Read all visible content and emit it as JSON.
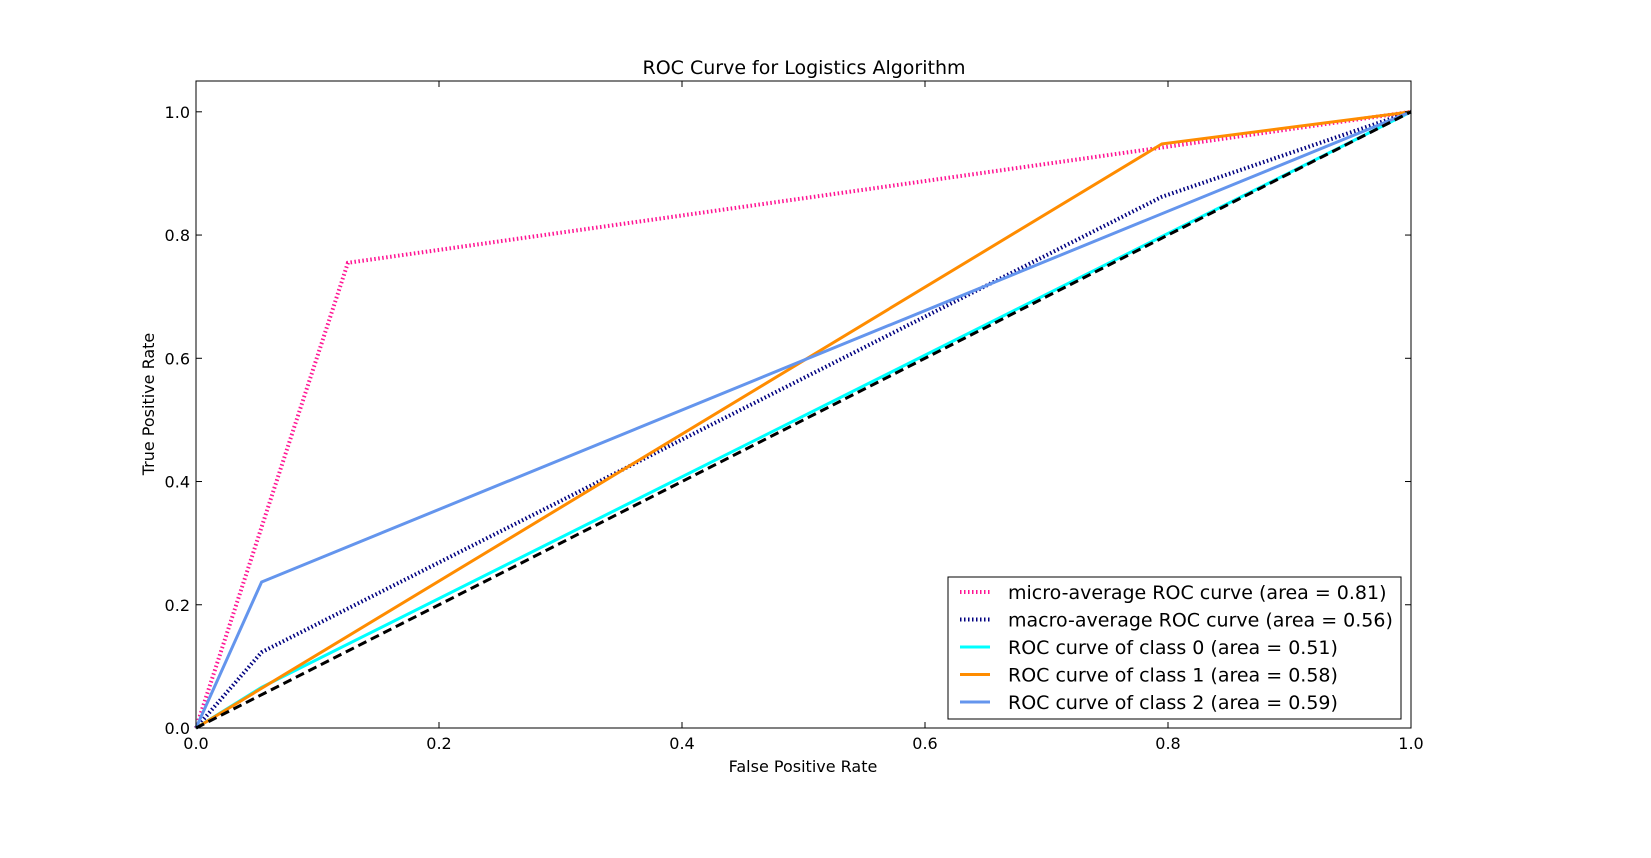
{
  "chart_data": {
    "type": "line",
    "title": "ROC Curve for Logistics Algorithm",
    "xlabel": "False Positive Rate",
    "ylabel": "True Positive Rate",
    "xlim": [
      0.0,
      1.0
    ],
    "ylim": [
      0.0,
      1.05
    ],
    "xticks": [
      "0.0",
      "0.2",
      "0.4",
      "0.6",
      "0.8",
      "1.0"
    ],
    "yticks": [
      "0.0",
      "0.2",
      "0.4",
      "0.6",
      "0.8",
      "1.0"
    ],
    "xtick_values": [
      0.0,
      0.2,
      0.4,
      0.6,
      0.8,
      1.0
    ],
    "ytick_values": [
      0.0,
      0.2,
      0.4,
      0.6,
      0.8,
      1.0
    ],
    "grid": false,
    "legend_placement": "lower right",
    "series": [
      {
        "name": "micro-average ROC curve (area = 0.81)",
        "color": "#ff1493",
        "style": "dotted",
        "x": [
          0.0,
          0.125,
          0.795,
          1.0
        ],
        "y": [
          0.0,
          0.755,
          0.942,
          1.0
        ]
      },
      {
        "name": "macro-average ROC curve (area = 0.56)",
        "color": "#000080",
        "style": "dotted",
        "x": [
          0.0,
          0.054,
          0.795,
          1.0
        ],
        "y": [
          0.0,
          0.123,
          0.862,
          1.0
        ]
      },
      {
        "name": "ROC curve of class 0 (area = 0.51)",
        "color": "#00ffff",
        "style": "solid",
        "x": [
          0.0,
          0.054,
          1.0
        ],
        "y": [
          0.0,
          0.066,
          1.0
        ]
      },
      {
        "name": "ROC curve of class 1 (area = 0.58)",
        "color": "#ff8c00",
        "style": "solid",
        "x": [
          0.0,
          0.795,
          1.0
        ],
        "y": [
          0.0,
          0.948,
          1.0
        ]
      },
      {
        "name": "ROC curve of class 2 (area = 0.59)",
        "color": "#6495ed",
        "style": "solid",
        "x": [
          0.0,
          0.054,
          1.0
        ],
        "y": [
          0.0,
          0.237,
          1.0
        ]
      }
    ],
    "reference_line": {
      "color": "#000000",
      "style": "dashed",
      "x": [
        0.0,
        1.0
      ],
      "y": [
        0.0,
        1.0
      ]
    }
  }
}
